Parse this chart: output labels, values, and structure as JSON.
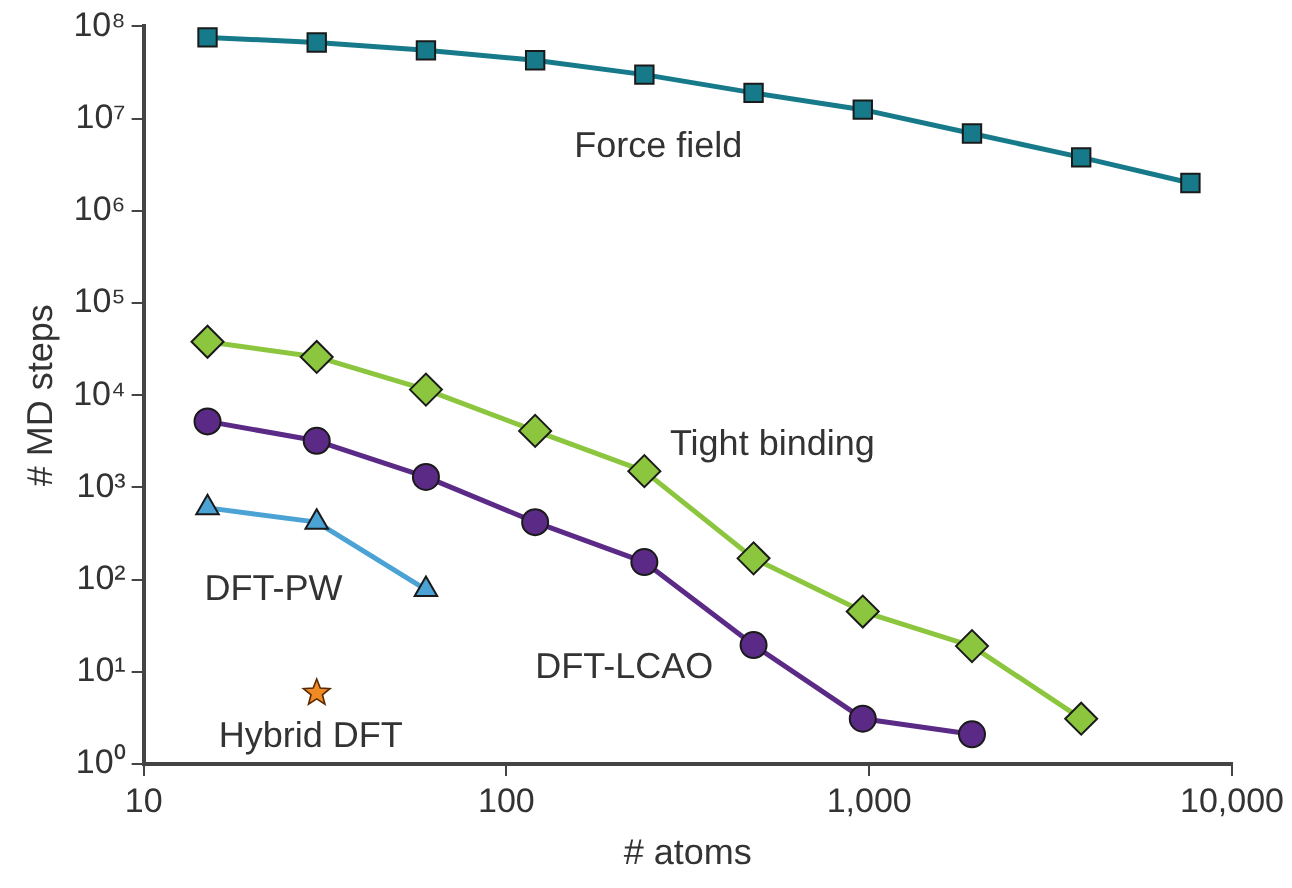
{
  "chart_data": {
    "type": "line",
    "xlabel": "# atoms",
    "ylabel": "# MD steps",
    "log": "xy",
    "grid": false,
    "legend": false,
    "xlim": [
      10,
      10000
    ],
    "xticks": [
      10,
      100,
      {
        "value": 1000,
        "label": "1,000"
      },
      {
        "value": 10000,
        "label": "10,000"
      }
    ],
    "ylim": [
      1,
      100000000
    ],
    "yticks": [
      {
        "value": 1,
        "label": "10⁰"
      },
      {
        "value": 10,
        "label": "10¹"
      },
      {
        "value": 100,
        "label": "10²"
      },
      {
        "value": 1000,
        "label": "10³"
      },
      {
        "value": 10000,
        "label": "10⁴"
      },
      {
        "value": 100000,
        "label": "10⁵"
      },
      {
        "value": 1000000,
        "label": "10⁶"
      },
      {
        "value": 10000000,
        "label": "10⁷"
      },
      {
        "value": 100000000,
        "label": "10⁸"
      }
    ],
    "series": [
      {
        "name": "Force field",
        "color": "#177a8a",
        "marker": "square",
        "x": [
          15,
          30,
          60,
          120,
          240,
          480,
          960,
          1920,
          3840,
          7680
        ],
        "values": [
          76000000,
          67000000,
          55000000,
          43000000,
          30000000,
          19000000,
          12500000,
          6900000,
          3800000,
          2000000
        ]
      },
      {
        "name": "Tight binding",
        "color": "#8cc63f",
        "marker": "diamond",
        "x": [
          15,
          30,
          60,
          120,
          240,
          480,
          960,
          1920,
          3840
        ],
        "values": [
          38000,
          26000,
          11500,
          4100,
          1500,
          170,
          45,
          19,
          3.1
        ]
      },
      {
        "name": "DFT-LCAO",
        "color": "#5b2a86",
        "marker": "circle",
        "x": [
          15,
          30,
          60,
          120,
          240,
          480,
          960,
          1920
        ],
        "values": [
          5200,
          3200,
          1300,
          420,
          155,
          19.5,
          3.1,
          2.1
        ]
      },
      {
        "name": "DFT-PW",
        "color": "#4aa3d4",
        "marker": "triangle",
        "x": [
          15,
          30,
          60
        ],
        "values": [
          600,
          420,
          78
        ]
      },
      {
        "name": "Hybrid DFT",
        "type": "scatter",
        "color": "#f08a24",
        "marker": "star",
        "x": [
          30
        ],
        "values": [
          5.9
        ]
      }
    ]
  }
}
